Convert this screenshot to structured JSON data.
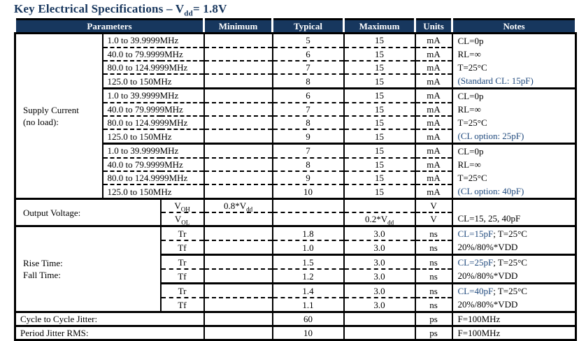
{
  "title": {
    "part1": "Key Electrical Specifications – V",
    "sub": "dd",
    "part2": "= 1.8V"
  },
  "colors": {
    "header_bg": "#17375E",
    "title": "#17365D",
    "note_blue": "#1F497D"
  },
  "table": {
    "header": {
      "parameters": "Parameters",
      "minimum": "Minimum",
      "typical": "Typical",
      "maximum": "Maximum",
      "units": "Units",
      "notes": "Notes"
    },
    "supply": {
      "label_line1": "Supply Current",
      "label_line2": "(no load):",
      "groups": [
        {
          "rows": [
            {
              "freq": "1.0 to 39.9999MHz",
              "minimum": "",
              "typical": "5",
              "maximum": "15",
              "units": "mA"
            },
            {
              "freq": "40.0 to 79.9999MHz",
              "minimum": "",
              "typical": "6",
              "maximum": "15",
              "units": "mA"
            },
            {
              "freq": "80.0 to 124.9999MHz",
              "minimum": "",
              "typical": "7",
              "maximum": "15",
              "units": "mA"
            },
            {
              "freq": "125.0 to 150MHz",
              "minimum": "",
              "typical": "8",
              "maximum": "15",
              "units": "mA"
            }
          ],
          "notes": [
            {
              "text": "CL=0p",
              "blue": false
            },
            {
              "text": "RL=∞",
              "blue": false
            },
            {
              "text": "T=25°C",
              "blue": false
            },
            {
              "text": "(Standard CL: 15pF)",
              "blue": true
            }
          ]
        },
        {
          "rows": [
            {
              "freq": "1.0 to 39.9999MHz",
              "minimum": "",
              "typical": "6",
              "maximum": "15",
              "units": "mA"
            },
            {
              "freq": "40.0 to 79.9999MHz",
              "minimum": "",
              "typical": "7",
              "maximum": "15",
              "units": "mA"
            },
            {
              "freq": "80.0 to 124.9999MHz",
              "minimum": "",
              "typical": "8",
              "maximum": "15",
              "units": "mA"
            },
            {
              "freq": "125.0 to 150MHz",
              "minimum": "",
              "typical": "9",
              "maximum": "15",
              "units": "mA"
            }
          ],
          "notes": [
            {
              "text": "CL=0p",
              "blue": false
            },
            {
              "text": "RL=∞",
              "blue": false
            },
            {
              "text": "T=25°C",
              "blue": false
            },
            {
              "text": "(CL option: 25pF)",
              "blue": true
            }
          ]
        },
        {
          "rows": [
            {
              "freq": "1.0 to 39.9999MHz",
              "minimum": "",
              "typical": "7",
              "maximum": "15",
              "units": "mA"
            },
            {
              "freq": "40.0 to 79.9999MHz",
              "minimum": "",
              "typical": "8",
              "maximum": "15",
              "units": "mA"
            },
            {
              "freq": "80.0 to 124.9999MHz",
              "minimum": "",
              "typical": "9",
              "maximum": "15",
              "units": "mA"
            },
            {
              "freq": "125.0 to 150MHz",
              "minimum": "",
              "typical": "10",
              "maximum": "15",
              "units": "mA"
            }
          ],
          "notes": [
            {
              "text": "CL=0p",
              "blue": false
            },
            {
              "text": "RL=∞",
              "blue": false
            },
            {
              "text": "T=25°C",
              "blue": false
            },
            {
              "text": "(CL option: 40pF)",
              "blue": true
            }
          ]
        }
      ]
    },
    "output_voltage": {
      "label": "Output Voltage:",
      "rows": [
        {
          "sym_base": "V",
          "sym_sub": "OH",
          "min_base": "0.8*V",
          "min_sub": "dd",
          "max_base": "",
          "max_sub": "",
          "units": "V"
        },
        {
          "sym_base": "V",
          "sym_sub": "OL",
          "min_base": "",
          "min_sub": "",
          "max_base": "0.2*V",
          "max_sub": "dd",
          "units": "V"
        }
      ],
      "note": "CL=15, 25, 40pF"
    },
    "rise_fall": {
      "label_line1": "Rise Time:",
      "label_line2": "Fall Time:",
      "pairs": [
        {
          "rows": [
            {
              "sym": "Tr",
              "typical": "1.8",
              "maximum": "3.0",
              "units": "ns"
            },
            {
              "sym": "Tf",
              "typical": "1.0",
              "maximum": "3.0",
              "units": "ns"
            }
          ],
          "note_blue": "CL=15pF",
          "note_black": "; T=25°C",
          "note_line2": "20%/80%*VDD"
        },
        {
          "rows": [
            {
              "sym": "Tr",
              "typical": "1.5",
              "maximum": "3.0",
              "units": "ns"
            },
            {
              "sym": "Tf",
              "typical": "1.2",
              "maximum": "3.0",
              "units": "ns"
            }
          ],
          "note_blue": "CL=25pF",
          "note_black": "; T=25°C",
          "note_line2": "20%/80%*VDD"
        },
        {
          "rows": [
            {
              "sym": "Tr",
              "typical": "1.4",
              "maximum": "3.0",
              "units": "ns"
            },
            {
              "sym": "Tf",
              "typical": "1.1",
              "maximum": "3.0",
              "units": "ns"
            }
          ],
          "note_blue": "CL=40pF",
          "note_black": "; T=25°C",
          "note_line2": "20%/80%*VDD"
        }
      ]
    },
    "jitter": [
      {
        "label": "Cycle to Cycle Jitter:",
        "typical": "60",
        "units": "ps",
        "note": "F=100MHz"
      },
      {
        "label": "Period Jitter RMS:",
        "typical": "10",
        "units": "ps",
        "note": "F=100MHz"
      }
    ]
  }
}
